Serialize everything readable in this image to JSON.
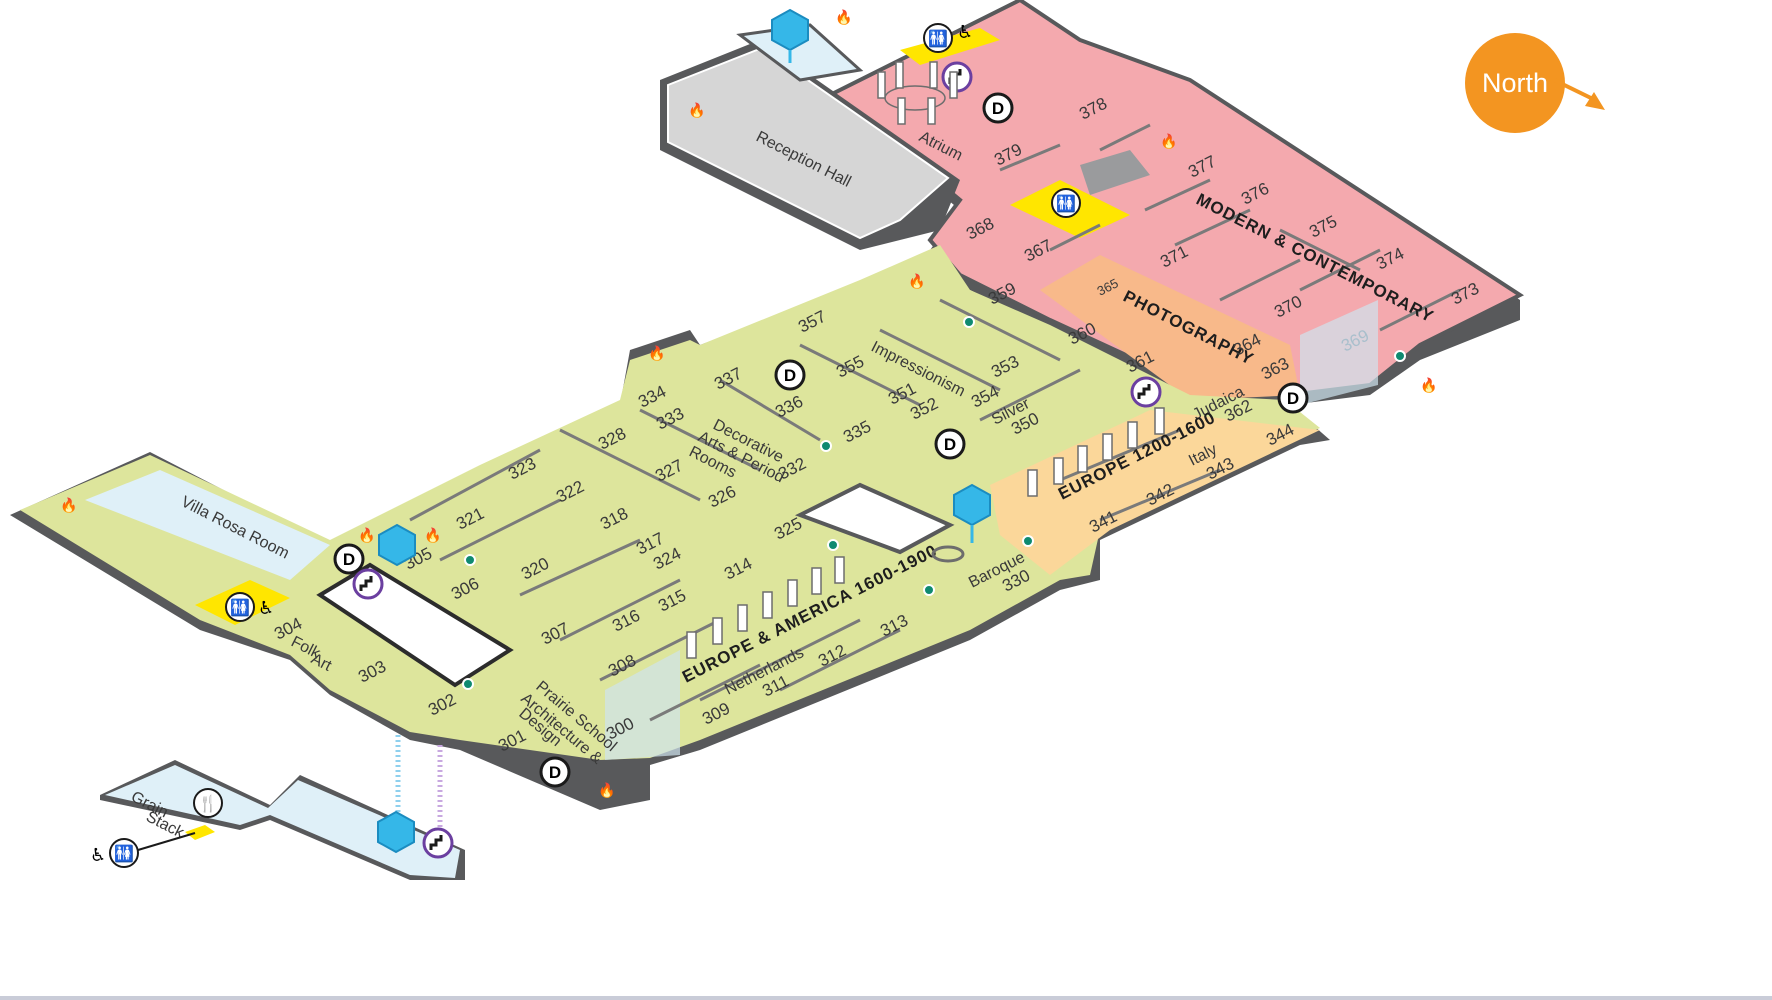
{
  "compass": {
    "label": "North"
  },
  "colors": {
    "yellow_green": "#dde59c",
    "pink": "#f4a9ae",
    "orange": "#f8b98a",
    "light_orange": "#fbd79a",
    "light_blue": "#dff0f8",
    "gray": "#9a9b9d",
    "dark_gray": "#58595b",
    "restroom_yellow": "#ffe600",
    "elevator_blue": "#35b7e8",
    "stairs_purple": "#6b3fa0",
    "info_dot_green": "#0f8a70"
  },
  "spaces": {
    "villa_rosa": "Villa Rosa Room",
    "reception": "Reception Hall",
    "atrium": "Atrium",
    "grain_stack": [
      "Grain",
      "Stack"
    ],
    "folk_art": [
      "Folk",
      "Art"
    ],
    "prairie": [
      "Prairie School",
      "Architecture &",
      "Design"
    ],
    "decorative": [
      "Decorative",
      "Arts & Period",
      "Rooms"
    ],
    "impressionism": "Impressionism",
    "silver": "Silver",
    "netherlands": "Netherlands",
    "baroque": "Baroque",
    "italy": "Italy",
    "judaica": "Judaica"
  },
  "galleries": {
    "europe_america": "EUROPE & AMERICA 1600-1900",
    "europe_1200": "EUROPE 1200-1600",
    "modern": "MODERN & CONTEMPORARY",
    "photography": "PHOTOGRAPHY"
  },
  "rooms": {
    "r300": "300",
    "r301": "301",
    "r302": "302",
    "r303": "303",
    "r304": "304",
    "r305": "305",
    "r306": "306",
    "r307": "307",
    "r308": "308",
    "r309": "309",
    "r311": "311",
    "r312": "312",
    "r313": "313",
    "r314": "314",
    "r315": "315",
    "r316": "316",
    "r317": "317",
    "r318": "318",
    "r320": "320",
    "r321": "321",
    "r322": "322",
    "r323": "323",
    "r324": "324",
    "r325": "325",
    "r326": "326",
    "r327": "327",
    "r328": "328",
    "r330": "330",
    "r332": "332",
    "r333": "333",
    "r334": "334",
    "r335": "335",
    "r336": "336",
    "r337": "337",
    "r341": "341",
    "r342": "342",
    "r343": "343",
    "r344": "344",
    "r350": "350",
    "r351": "351",
    "r352": "352",
    "r353": "353",
    "r354": "354",
    "r355": "355",
    "r357": "357",
    "r359": "359",
    "r360": "360",
    "r361": "361",
    "r362": "362",
    "r363": "363",
    "r364": "364",
    "r365": "365",
    "r367": "367",
    "r368": "368",
    "r369": "369",
    "r370": "370",
    "r371": "371",
    "r373": "373",
    "r374": "374",
    "r375": "375",
    "r376": "376",
    "r377": "377",
    "r378": "378",
    "r379": "379"
  },
  "markers": {
    "d": "D"
  }
}
